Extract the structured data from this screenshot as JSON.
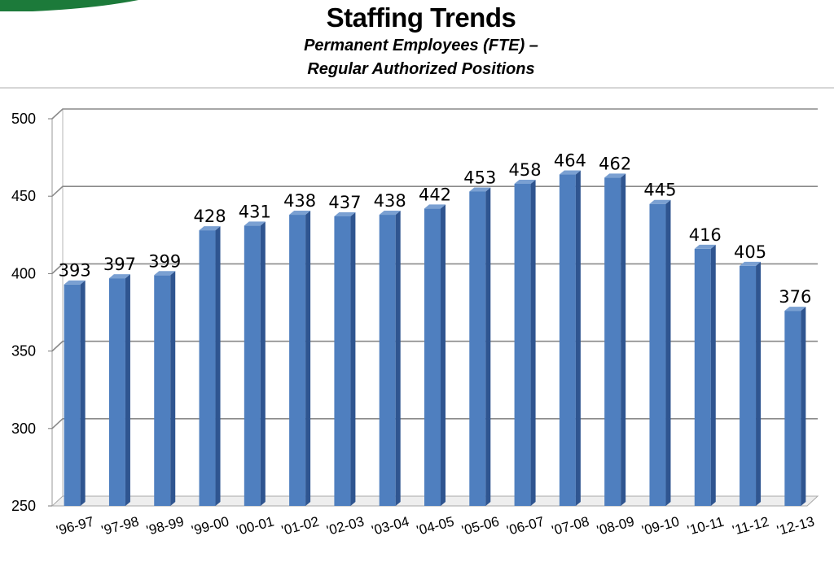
{
  "colors": {
    "bar_front": "#4f7fbf",
    "bar_side": "#2f5590",
    "bar_top": "#7aa0d2",
    "grid": "#8a8a8a",
    "corner_accent": "#1c7a3a"
  },
  "chart_data": {
    "type": "bar",
    "title": "Staffing Trends",
    "subtitle_line1": "Permanent Employees (FTE) –",
    "subtitle_line2": "Regular Authorized Positions",
    "categories": [
      "'96-97",
      "'97-98",
      "'98-99",
      "'99-00",
      "'00-01",
      "'01-02",
      "'02-03",
      "'03-04",
      "'04-05",
      "'05-06",
      "'06-07",
      "'07-08",
      "'08-09",
      "'09-10",
      "'10-11",
      "'11-12",
      "'12-13"
    ],
    "values": [
      393,
      397,
      399,
      428,
      431,
      438,
      437,
      438,
      442,
      453,
      458,
      464,
      462,
      445,
      416,
      405,
      376
    ],
    "data_labels": [
      "393",
      "397",
      "399",
      "428",
      "431",
      "438",
      "437",
      "438",
      "442",
      "453",
      "458",
      "464",
      "462",
      "445",
      "416",
      "405",
      "376"
    ],
    "yticks": [
      250,
      300,
      350,
      400,
      450,
      500
    ],
    "ytick_labels": [
      "250",
      "300",
      "350",
      "400",
      "450",
      "500"
    ],
    "ylim": [
      250,
      500
    ],
    "grid": true,
    "legend": "none",
    "bar_style": "3d"
  }
}
